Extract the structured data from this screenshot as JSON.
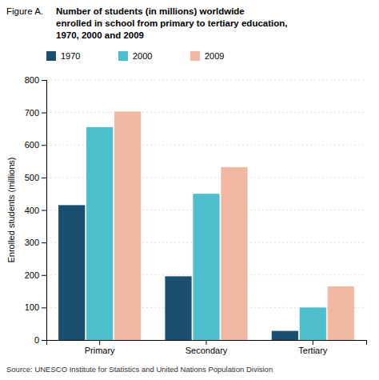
{
  "chart_data": {
    "type": "bar",
    "title": "Number of students (in millions) worldwide\nenrolled in school from primary to tertiary education,\n1970, 2000 and 2009",
    "annotations": [
      "Figure A.",
      "Source: UNESCO Institute for Statistics and United Nations Population Division"
    ],
    "ylabel": "Enrolled students (millions)",
    "categories": [
      "Primary",
      "Secondary",
      "Tertiary"
    ],
    "series": [
      {
        "name": "1970",
        "color": "#1a4f72",
        "values": [
          415,
          196,
          28
        ]
      },
      {
        "name": "2000",
        "color": "#4dbfcc",
        "values": [
          655,
          450,
          100
        ]
      },
      {
        "name": "2009",
        "color": "#f0b8a0",
        "values": [
          703,
          532,
          165
        ]
      }
    ],
    "ylim": [
      0,
      800
    ],
    "yticks": [
      0,
      100,
      200,
      300,
      400,
      500,
      600,
      700,
      800
    ],
    "grid": true
  }
}
